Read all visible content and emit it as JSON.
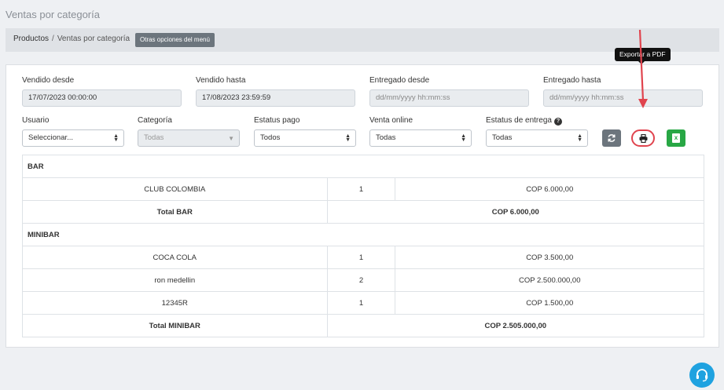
{
  "page": {
    "title": "Ventas por categoría"
  },
  "breadcrumb": {
    "root": "Productos",
    "separator": "/",
    "current": "Ventas por categoría",
    "menu_button": "Otras opciones del menú"
  },
  "filters": {
    "sold_from": {
      "label": "Vendido desde",
      "value": "17/07/2023 00:00:00"
    },
    "sold_to": {
      "label": "Vendido hasta",
      "value": "17/08/2023 23:59:59"
    },
    "delivered_from": {
      "label": "Entregado desde",
      "placeholder": "dd/mm/yyyy hh:mm:ss"
    },
    "delivered_to": {
      "label": "Entregado hasta",
      "placeholder": "dd/mm/yyyy hh:mm:ss"
    },
    "user": {
      "label": "Usuario",
      "value": "Seleccionar..."
    },
    "category": {
      "label": "Categoría",
      "value": "Todas"
    },
    "payment_status": {
      "label": "Estatus pago",
      "value": "Todos"
    },
    "online_sale": {
      "label": "Venta online",
      "value": "Todas"
    },
    "delivery_status": {
      "label": "Estatus de entrega",
      "value": "Todas"
    }
  },
  "actions": {
    "pdf_tooltip": "Exportar a PDF",
    "refresh_icon": "refresh-icon",
    "print_icon": "print-icon",
    "excel_icon": "excel-icon",
    "excel_glyph": "x"
  },
  "report": {
    "groups": [
      {
        "name": "BAR",
        "rows": [
          {
            "product": "CLUB COLOMBIA",
            "qty": "1",
            "amount": "COP 6.000,00"
          }
        ],
        "total_label": "Total BAR",
        "total_amount": "COP 6.000,00"
      },
      {
        "name": "MINIBAR",
        "rows": [
          {
            "product": "COCA COLA",
            "qty": "1",
            "amount": "COP 3.500,00"
          },
          {
            "product": "ron medellin",
            "qty": "2",
            "amount": "COP 2.500.000,00"
          },
          {
            "product": "12345R",
            "qty": "1",
            "amount": "COP 1.500,00"
          }
        ],
        "total_label": "Total MINIBAR",
        "total_amount": "COP 2.505.000,00"
      }
    ]
  },
  "colors": {
    "accent_red": "#e0444e",
    "excel_green": "#28a745",
    "support_blue": "#1fa2e0"
  }
}
